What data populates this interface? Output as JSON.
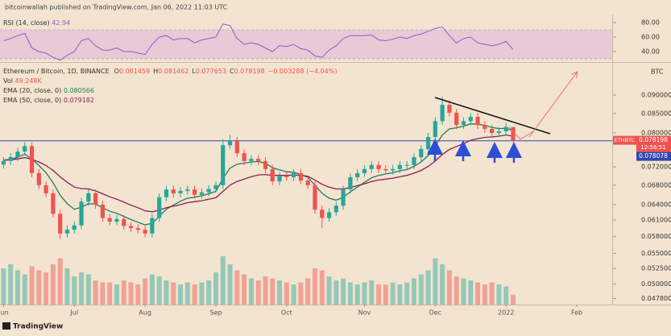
{
  "header": "bitcoinwallah published on TradingView.com, Jan 06, 2022 11:03 UTC",
  "footer": "TradingView",
  "chart_data": {
    "type": "candlestick",
    "title": "Ethereum / Bitcoin, 1D, BINANCE",
    "ohlc_labels": [
      "O",
      "H",
      "L",
      "C"
    ],
    "change_label": "−0.003288 (−4.04%)",
    "symbol": "ETHBTC",
    "currency": "BTC",
    "countdown": "12:56:51",
    "log_scale": true,
    "grid": false,
    "xlim": [
      -0.5,
      86
    ],
    "xticks": [
      {
        "value": 0,
        "label": "Jun"
      },
      {
        "value": 10,
        "label": "Jul"
      },
      {
        "value": 20,
        "label": "Aug"
      },
      {
        "value": 30,
        "label": "Sep"
      },
      {
        "value": 40,
        "label": "Oct"
      },
      {
        "value": 51,
        "label": "Nov"
      },
      {
        "value": 61,
        "label": "Dec"
      },
      {
        "value": 71,
        "label": "2022"
      },
      {
        "value": 81,
        "label": "Feb"
      }
    ],
    "ylim": [
      0.0469,
      0.0995
    ],
    "yticks": [
      {
        "value": 0.09,
        "label": "0.090000"
      },
      {
        "value": 0.085,
        "label": "0.085000"
      },
      {
        "value": 0.08,
        "label": "0.080000"
      },
      {
        "value": 0.072,
        "label": "0.072000"
      },
      {
        "value": 0.068,
        "label": "0.068000"
      },
      {
        "value": 0.064,
        "label": "0.064000"
      },
      {
        "value": 0.061,
        "label": "0.061000"
      },
      {
        "value": 0.058,
        "label": "0.058000"
      },
      {
        "value": 0.055,
        "label": "0.055000"
      },
      {
        "value": 0.0525,
        "label": "0.052500"
      },
      {
        "value": 0.05,
        "label": "0.050000"
      },
      {
        "value": 0.0478,
        "label": "0.047800"
      }
    ],
    "open": [
      0.0725,
      0.0733,
      0.0742,
      0.0755,
      0.0768,
      0.0706,
      0.068,
      0.0663,
      0.0622,
      0.0585,
      0.0592,
      0.06,
      0.0646,
      0.0663,
      0.064,
      0.0614,
      0.0607,
      0.0612,
      0.0599,
      0.0595,
      0.0592,
      0.0585,
      0.0614,
      0.0655,
      0.0671,
      0.0663,
      0.0668,
      0.0671,
      0.066,
      0.0665,
      0.0672,
      0.068,
      0.077,
      0.078,
      0.0751,
      0.0733,
      0.0738,
      0.0733,
      0.0715,
      0.0688,
      0.07,
      0.0697,
      0.0706,
      0.069,
      0.068,
      0.063,
      0.0614,
      0.0625,
      0.0638,
      0.0671,
      0.0697,
      0.0706,
      0.0715,
      0.0724,
      0.0715,
      0.0712,
      0.0715,
      0.0724,
      0.0724,
      0.0742,
      0.0761,
      0.079,
      0.083,
      0.0873,
      0.0852,
      0.082,
      0.083,
      0.0841,
      0.082,
      0.081,
      0.08,
      0.0804,
      0.081459
    ],
    "high": [
      0.0742,
      0.0751,
      0.0764,
      0.0777,
      0.0777,
      0.0715,
      0.0688,
      0.0671,
      0.063,
      0.06,
      0.0607,
      0.0654,
      0.0671,
      0.0671,
      0.0648,
      0.0622,
      0.062,
      0.062,
      0.0606,
      0.0602,
      0.0599,
      0.0622,
      0.0663,
      0.0679,
      0.0679,
      0.0676,
      0.0679,
      0.0679,
      0.0673,
      0.068,
      0.0688,
      0.0785,
      0.0795,
      0.079,
      0.076,
      0.0747,
      0.0747,
      0.0742,
      0.0724,
      0.0708,
      0.0708,
      0.0715,
      0.0715,
      0.0698,
      0.0688,
      0.0638,
      0.0633,
      0.0646,
      0.0679,
      0.0705,
      0.0715,
      0.0724,
      0.0733,
      0.0733,
      0.0724,
      0.0724,
      0.0733,
      0.0733,
      0.0751,
      0.077,
      0.08,
      0.084,
      0.0895,
      0.0885,
      0.0862,
      0.084,
      0.0851,
      0.0851,
      0.083,
      0.082,
      0.0814,
      0.0825,
      0.081462
    ],
    "low": [
      0.0716,
      0.0724,
      0.0733,
      0.0746,
      0.0697,
      0.0672,
      0.0655,
      0.0615,
      0.0575,
      0.0578,
      0.0585,
      0.0593,
      0.0638,
      0.0632,
      0.0607,
      0.06,
      0.06,
      0.0592,
      0.0588,
      0.0585,
      0.0578,
      0.0578,
      0.0607,
      0.0647,
      0.0655,
      0.0655,
      0.066,
      0.0652,
      0.0652,
      0.0657,
      0.0664,
      0.0672,
      0.0761,
      0.0742,
      0.0724,
      0.0724,
      0.0724,
      0.0706,
      0.068,
      0.068,
      0.0689,
      0.0689,
      0.0682,
      0.0672,
      0.0622,
      0.0595,
      0.0607,
      0.0618,
      0.063,
      0.0663,
      0.0689,
      0.0698,
      0.0706,
      0.0706,
      0.0703,
      0.0703,
      0.0706,
      0.0715,
      0.0715,
      0.0733,
      0.0752,
      0.078,
      0.082,
      0.0842,
      0.081,
      0.081,
      0.082,
      0.081,
      0.08,
      0.079,
      0.079,
      0.0794,
      0.077653
    ],
    "close": [
      0.0733,
      0.0742,
      0.0755,
      0.0768,
      0.0706,
      0.068,
      0.0663,
      0.0622,
      0.0585,
      0.0592,
      0.06,
      0.0646,
      0.0663,
      0.064,
      0.0614,
      0.0607,
      0.0612,
      0.0599,
      0.0595,
      0.0592,
      0.0585,
      0.0614,
      0.0655,
      0.0671,
      0.0663,
      0.0668,
      0.0671,
      0.066,
      0.0665,
      0.0672,
      0.068,
      0.077,
      0.078,
      0.0751,
      0.0733,
      0.0738,
      0.0733,
      0.0715,
      0.0688,
      0.07,
      0.0697,
      0.0706,
      0.069,
      0.068,
      0.063,
      0.0614,
      0.0625,
      0.0638,
      0.0671,
      0.0697,
      0.0706,
      0.0715,
      0.0724,
      0.0715,
      0.0712,
      0.0715,
      0.0724,
      0.0724,
      0.0742,
      0.0761,
      0.079,
      0.083,
      0.0873,
      0.0852,
      0.082,
      0.083,
      0.0841,
      0.082,
      0.081,
      0.08,
      0.0804,
      0.0815,
      0.078198
    ],
    "up_color": "#26a69a",
    "down_color": "#ef5350",
    "hline": {
      "value": 0.078078,
      "color": "#3346b0"
    },
    "series": [
      {
        "name": "EMA (20, close, 0)",
        "color": "#1f7d5c",
        "values": [
          0.0735,
          0.0737,
          0.0742,
          0.0749,
          0.0738,
          0.0723,
          0.0707,
          0.0685,
          0.0659,
          0.0642,
          0.0631,
          0.0635,
          0.0642,
          0.0641,
          0.0634,
          0.0627,
          0.0623,
          0.0617,
          0.0611,
          0.0606,
          0.0601,
          0.0604,
          0.0617,
          0.0631,
          0.0639,
          0.0647,
          0.0653,
          0.0655,
          0.0658,
          0.0662,
          0.0667,
          0.0694,
          0.0717,
          0.0726,
          0.0728,
          0.0731,
          0.0732,
          0.0728,
          0.0718,
          0.0713,
          0.0709,
          0.0708,
          0.0703,
          0.0697,
          0.068,
          0.0663,
          0.0653,
          0.0649,
          0.0655,
          0.0666,
          0.0676,
          0.0686,
          0.0696,
          0.0701,
          0.0704,
          0.0707,
          0.0711,
          0.0714,
          0.0721,
          0.0731,
          0.0746,
          0.0768,
          0.0795,
          0.081,
          0.0813,
          0.0817,
          0.0823,
          0.0822,
          0.0819,
          0.0814,
          0.0811,
          0.0812,
          0.080566
        ]
      },
      {
        "name": "EMA (50, close, 0)",
        "color": "#8e1f4f",
        "values": [
          0.0735,
          0.0736,
          0.0738,
          0.0741,
          0.0737,
          0.0731,
          0.0723,
          0.0712,
          0.0698,
          0.0686,
          0.0676,
          0.0673,
          0.0672,
          0.0668,
          0.0662,
          0.0656,
          0.0651,
          0.0645,
          0.0639,
          0.0634,
          0.0628,
          0.0626,
          0.0629,
          0.0634,
          0.0637,
          0.064,
          0.0644,
          0.0646,
          0.0648,
          0.0651,
          0.0654,
          0.0667,
          0.068,
          0.0688,
          0.0693,
          0.0698,
          0.0702,
          0.0703,
          0.0701,
          0.0701,
          0.0701,
          0.0702,
          0.0701,
          0.0699,
          0.0691,
          0.0682,
          0.0676,
          0.0672,
          0.0672,
          0.0675,
          0.0679,
          0.0683,
          0.0688,
          0.0691,
          0.0693,
          0.0695,
          0.0698,
          0.0701,
          0.0706,
          0.0712,
          0.0721,
          0.0733,
          0.0748,
          0.076,
          0.0767,
          0.0774,
          0.0782,
          0.0786,
          0.0789,
          0.079,
          0.0792,
          0.0795,
          0.079182
        ]
      }
    ],
    "volume": {
      "name": "Vol",
      "last_value_label": "49.248K",
      "values": [
        180,
        200,
        170,
        150,
        190,
        170,
        160,
        200,
        230,
        180,
        140,
        160,
        150,
        120,
        110,
        110,
        100,
        120,
        110,
        100,
        130,
        150,
        140,
        120,
        110,
        100,
        110,
        100,
        110,
        120,
        160,
        240,
        200,
        170,
        150,
        130,
        120,
        140,
        130,
        120,
        110,
        100,
        110,
        130,
        180,
        170,
        140,
        120,
        130,
        110,
        100,
        110,
        120,
        100,
        100,
        110,
        100,
        110,
        130,
        150,
        170,
        230,
        200,
        170,
        140,
        130,
        120,
        110,
        100,
        110,
        100,
        90,
        49.248
      ]
    },
    "rsi": {
      "name": "RSI (14, close)",
      "color": "#8e5cc6",
      "ylim": [
        26.7,
        91.1
      ],
      "yticks": [
        {
          "value": 80,
          "label": "80.00"
        },
        {
          "value": 60,
          "label": "60.00"
        },
        {
          "value": 40,
          "label": "40.00"
        }
      ],
      "band": [
        30,
        70
      ],
      "values": [
        55,
        58,
        62,
        65,
        45,
        40,
        38,
        32,
        28,
        35,
        40,
        55,
        58,
        48,
        42,
        42,
        45,
        40,
        40,
        38,
        36,
        50,
        60,
        62,
        56,
        58,
        58,
        52,
        56,
        58,
        60,
        78,
        76,
        58,
        50,
        52,
        50,
        45,
        40,
        48,
        47,
        50,
        44,
        42,
        34,
        32,
        42,
        48,
        58,
        62,
        62,
        62,
        63,
        56,
        55,
        57,
        60,
        58,
        62,
        64,
        68,
        72,
        74,
        62,
        52,
        58,
        60,
        52,
        50,
        48,
        50,
        54,
        42.94
      ]
    }
  }
}
